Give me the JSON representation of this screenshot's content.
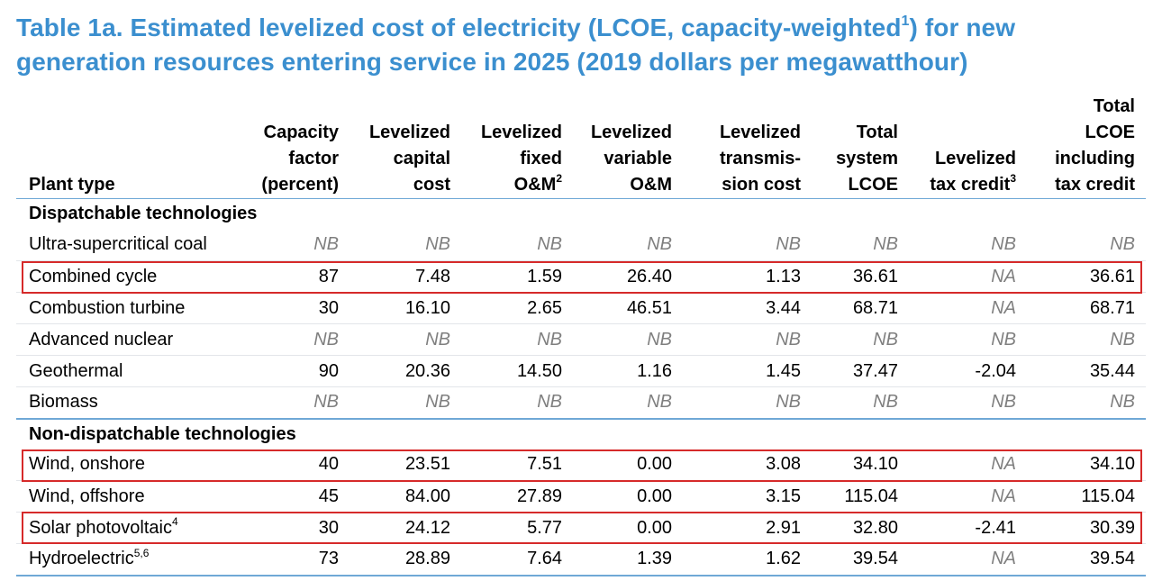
{
  "title": {
    "line1_pre": "Table 1a. Estimated levelized cost of electricity (LCOE, capacity-weighted",
    "line1_sup": "1",
    "line1_post": ") for new",
    "line2": "generation resources entering service in 2025 (2019 dollars per megawatthour)"
  },
  "headers": {
    "plant_type": "Plant type",
    "capacity_factor": [
      "Capacity",
      "factor",
      "(percent)"
    ],
    "capital_cost": [
      "Levelized",
      "capital",
      "cost"
    ],
    "fixed_om": [
      "Levelized",
      "fixed",
      "O&M"
    ],
    "fixed_om_sup": "2",
    "variable_om": [
      "Levelized",
      "variable",
      "O&M"
    ],
    "transmission": [
      "Levelized",
      "transmis-",
      "sion cost"
    ],
    "total_system": [
      "Total",
      "system",
      "LCOE"
    ],
    "tax_credit": [
      "Levelized",
      "tax credit"
    ],
    "tax_credit_sup": "3",
    "total_incl": [
      "Total",
      "LCOE",
      "including",
      "tax credit"
    ]
  },
  "sections": {
    "dispatchable": "Dispatchable technologies",
    "non_dispatchable": "Non-dispatchable technologies"
  },
  "rows": [
    {
      "plant": "Ultra-supercritical coal",
      "sup": "",
      "values": [
        "NB",
        "NB",
        "NB",
        "NB",
        "NB",
        "NB",
        "NB",
        "NB"
      ]
    },
    {
      "plant": "Combined cycle",
      "sup": "",
      "values": [
        "87",
        "7.48",
        "1.59",
        "26.40",
        "1.13",
        "36.61",
        "NA",
        "36.61"
      ]
    },
    {
      "plant": "Combustion turbine",
      "sup": "",
      "values": [
        "30",
        "16.10",
        "2.65",
        "46.51",
        "3.44",
        "68.71",
        "NA",
        "68.71"
      ]
    },
    {
      "plant": "Advanced nuclear",
      "sup": "",
      "values": [
        "NB",
        "NB",
        "NB",
        "NB",
        "NB",
        "NB",
        "NB",
        "NB"
      ]
    },
    {
      "plant": "Geothermal",
      "sup": "",
      "values": [
        "90",
        "20.36",
        "14.50",
        "1.16",
        "1.45",
        "37.47",
        "-2.04",
        "35.44"
      ]
    },
    {
      "plant": "Biomass",
      "sup": "",
      "values": [
        "NB",
        "NB",
        "NB",
        "NB",
        "NB",
        "NB",
        "NB",
        "NB"
      ]
    },
    {
      "plant": "Wind, onshore",
      "sup": "",
      "values": [
        "40",
        "23.51",
        "7.51",
        "0.00",
        "3.08",
        "34.10",
        "NA",
        "34.10"
      ]
    },
    {
      "plant": "Wind, offshore",
      "sup": "",
      "values": [
        "45",
        "84.00",
        "27.89",
        "0.00",
        "3.15",
        "115.04",
        "NA",
        "115.04"
      ]
    },
    {
      "plant": "Solar photovoltaic",
      "sup": "4",
      "values": [
        "30",
        "24.12",
        "5.77",
        "0.00",
        "2.91",
        "32.80",
        "-2.41",
        "30.39"
      ]
    },
    {
      "plant": "Hydroelectric",
      "sup": "5,6",
      "values": [
        "73",
        "28.89",
        "7.64",
        "1.39",
        "1.62",
        "39.54",
        "NA",
        "39.54"
      ]
    }
  ],
  "highlight_color": "#d62a2a",
  "title_color": "#3b8fcf"
}
